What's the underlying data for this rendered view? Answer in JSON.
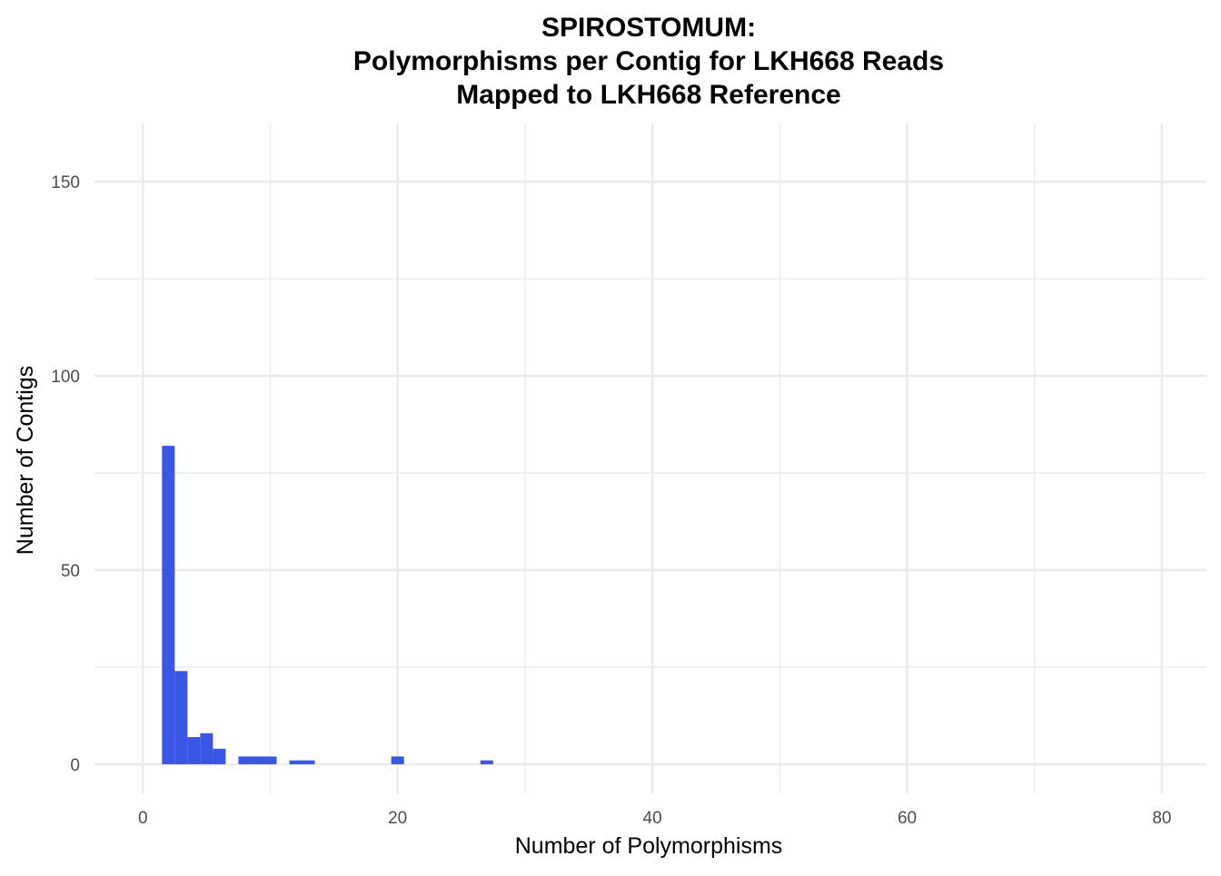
{
  "chart_data": {
    "type": "bar",
    "title_lines": [
      "SPIROSTOMUM:",
      "Polymorphisms per Contig for LKH668 Reads",
      "Mapped to LKH668 Reference"
    ],
    "xlabel": "Number of Polymorphisms",
    "ylabel": "Number of Contigs",
    "xlim": [
      -3.8,
      83.5
    ],
    "ylim": [
      -7.5,
      165
    ],
    "x_ticks": [
      0,
      20,
      40,
      60,
      80
    ],
    "x_minor_ticks": [
      10,
      30,
      50,
      70
    ],
    "y_ticks": [
      0,
      50,
      100,
      150
    ],
    "y_minor_ticks": [
      25,
      75,
      125
    ],
    "grid": true,
    "bin_width": 1,
    "color": "#3a56e4",
    "bins": [
      {
        "x": 2,
        "count": 82
      },
      {
        "x": 3,
        "count": 24
      },
      {
        "x": 4,
        "count": 7
      },
      {
        "x": 5,
        "count": 8
      },
      {
        "x": 6,
        "count": 4
      },
      {
        "x": 8,
        "count": 2
      },
      {
        "x": 9,
        "count": 2
      },
      {
        "x": 10,
        "count": 2
      },
      {
        "x": 12,
        "count": 1
      },
      {
        "x": 13,
        "count": 1
      },
      {
        "x": 20,
        "count": 2
      },
      {
        "x": 27,
        "count": 1
      }
    ]
  }
}
